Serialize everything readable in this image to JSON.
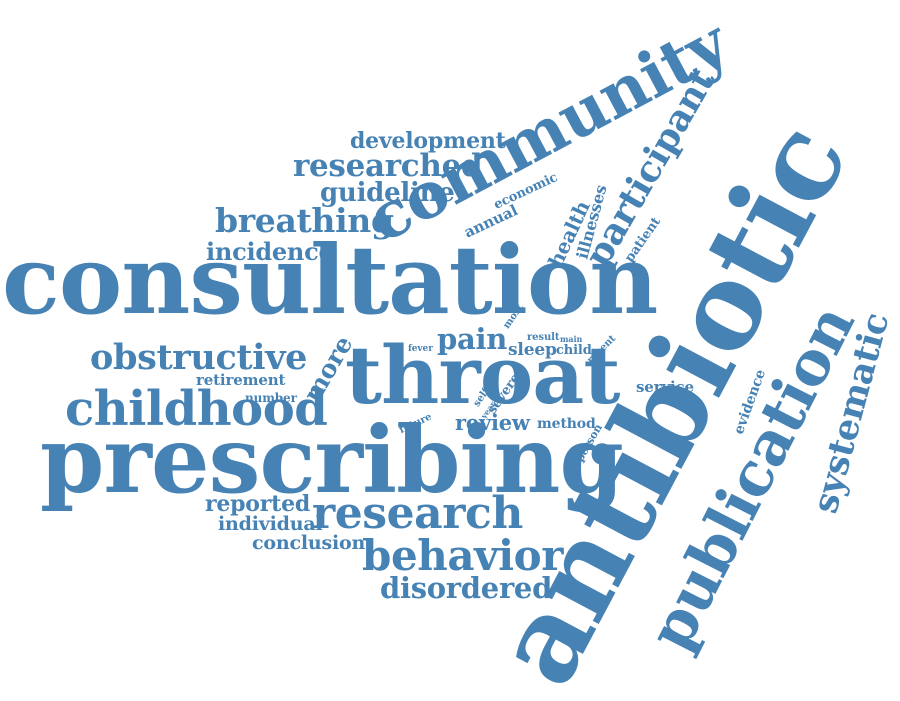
{
  "colors": {
    "word": "#4682B4",
    "background": "#FFFFFF"
  },
  "words": [
    {
      "id": "consultation",
      "text": "consultation"
    },
    {
      "id": "prescribing",
      "text": "prescribing"
    },
    {
      "id": "throat",
      "text": "throat"
    },
    {
      "id": "antibiotic",
      "text": "antibiotic"
    },
    {
      "id": "publication",
      "text": "publication"
    },
    {
      "id": "community",
      "text": "community"
    },
    {
      "id": "childhood",
      "text": "childhood"
    },
    {
      "id": "systematic",
      "text": "systematic"
    },
    {
      "id": "research",
      "text": "research"
    },
    {
      "id": "behavior",
      "text": "behavior"
    },
    {
      "id": "participant",
      "text": "participant"
    },
    {
      "id": "obstructive",
      "text": "obstructive"
    },
    {
      "id": "breathing",
      "text": "breathing"
    },
    {
      "id": "researched",
      "text": "researched"
    },
    {
      "id": "disordered",
      "text": "disordered"
    },
    {
      "id": "development",
      "text": "development"
    },
    {
      "id": "guideline",
      "text": "guideline"
    },
    {
      "id": "incidence",
      "text": "incidence"
    },
    {
      "id": "pain",
      "text": "pain"
    },
    {
      "id": "more",
      "text": "more"
    },
    {
      "id": "review",
      "text": "review"
    },
    {
      "id": "reported",
      "text": "reported"
    },
    {
      "id": "individual",
      "text": "individual"
    },
    {
      "id": "conclusion",
      "text": "conclusion"
    },
    {
      "id": "retirement",
      "text": "retirement"
    },
    {
      "id": "sleep",
      "text": "sleep"
    },
    {
      "id": "health",
      "text": "health"
    },
    {
      "id": "evidence",
      "text": "evidence"
    },
    {
      "id": "annual",
      "text": "annual"
    },
    {
      "id": "economic",
      "text": "economic"
    },
    {
      "id": "illnesses",
      "text": "illnesses"
    },
    {
      "id": "patient",
      "text": "patient"
    },
    {
      "id": "number",
      "text": "number"
    },
    {
      "id": "method",
      "text": "method"
    },
    {
      "id": "service",
      "text": "service"
    },
    {
      "id": "severe",
      "text": "severe"
    },
    {
      "id": "person",
      "text": "person"
    },
    {
      "id": "most",
      "text": "most"
    },
    {
      "id": "child",
      "text": "child"
    },
    {
      "id": "recent",
      "text": "recent"
    },
    {
      "id": "fever",
      "text": "fever"
    },
    {
      "id": "result",
      "text": "result"
    },
    {
      "id": "main",
      "text": "main"
    },
    {
      "id": "future",
      "text": "future"
    },
    {
      "id": "self",
      "text": "self"
    },
    {
      "id": "year",
      "text": "year"
    }
  ]
}
